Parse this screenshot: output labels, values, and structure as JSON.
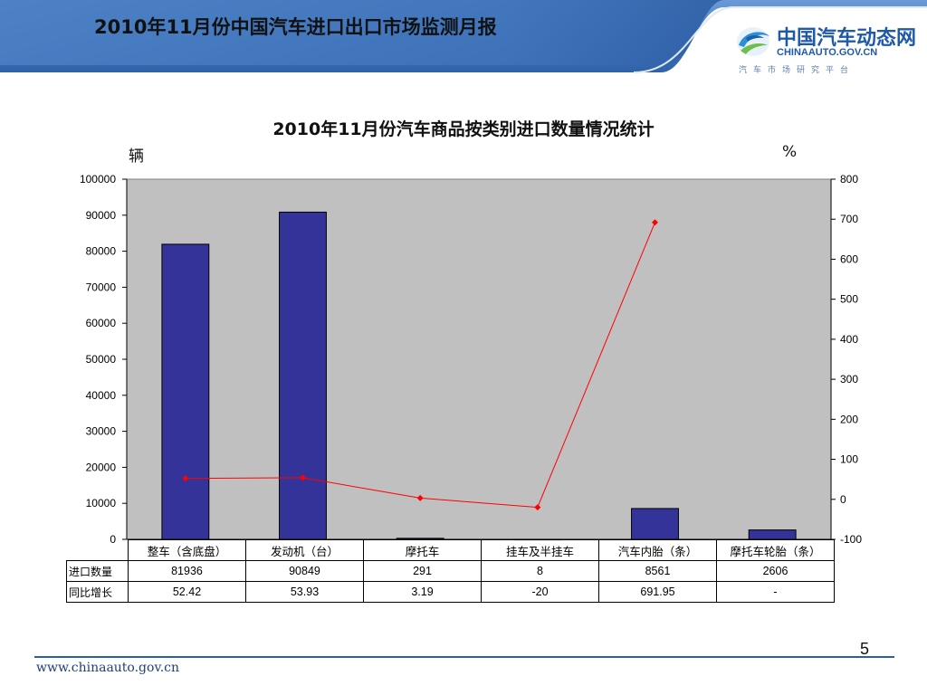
{
  "header": {
    "title": "2010年11月份中国汽车进口出口市场监测月报"
  },
  "logo": {
    "name_cn": "中国汽车动态网",
    "name_en": "CHINAAUTO.GOV.CN",
    "subtitle": "汽车市场研究平台"
  },
  "units": {
    "left": "辆",
    "right": "%"
  },
  "chart_data": {
    "type": "bar",
    "title": "2010年11月份汽车商品按类别进口数量情况统计",
    "categories": [
      "整车（含底盘）",
      "发动机（台）",
      "摩托车",
      "挂车及半挂车",
      "汽车内胎（条）",
      "摩托车轮胎（条）"
    ],
    "series": [
      {
        "name": "进口数量",
        "type": "bar",
        "axis": "left",
        "color": "#333399",
        "values": [
          81936,
          90849,
          291,
          8,
          8561,
          2606
        ]
      },
      {
        "name": "同比增长",
        "type": "line",
        "axis": "right",
        "color": "#ff0000",
        "values": [
          52.42,
          53.93,
          3.19,
          -20,
          691.95,
          null
        ]
      }
    ],
    "table_display": {
      "进口数量": [
        "81936",
        "90849",
        "291",
        "8",
        "8561",
        "2606"
      ],
      "同比增长": [
        "52.42",
        "53.93",
        "3.19",
        "-20",
        "691.95",
        "-"
      ]
    },
    "ylim_left": [
      0,
      100000
    ],
    "yticks_left": [
      0,
      10000,
      20000,
      30000,
      40000,
      50000,
      60000,
      70000,
      80000,
      90000,
      100000
    ],
    "ylim_right": [
      -100,
      800
    ],
    "yticks_right": [
      -100,
      0,
      100,
      200,
      300,
      400,
      500,
      600,
      700,
      800
    ],
    "grid": false,
    "plot_background": "#c0c0c0"
  },
  "footer": {
    "url": "www.chinaauto.gov.cn",
    "page_number": "5"
  },
  "colors": {
    "header_blue": "#3a6fb7",
    "bar": "#333399",
    "line": "#ff0000",
    "plot_bg": "#c0c0c0"
  }
}
